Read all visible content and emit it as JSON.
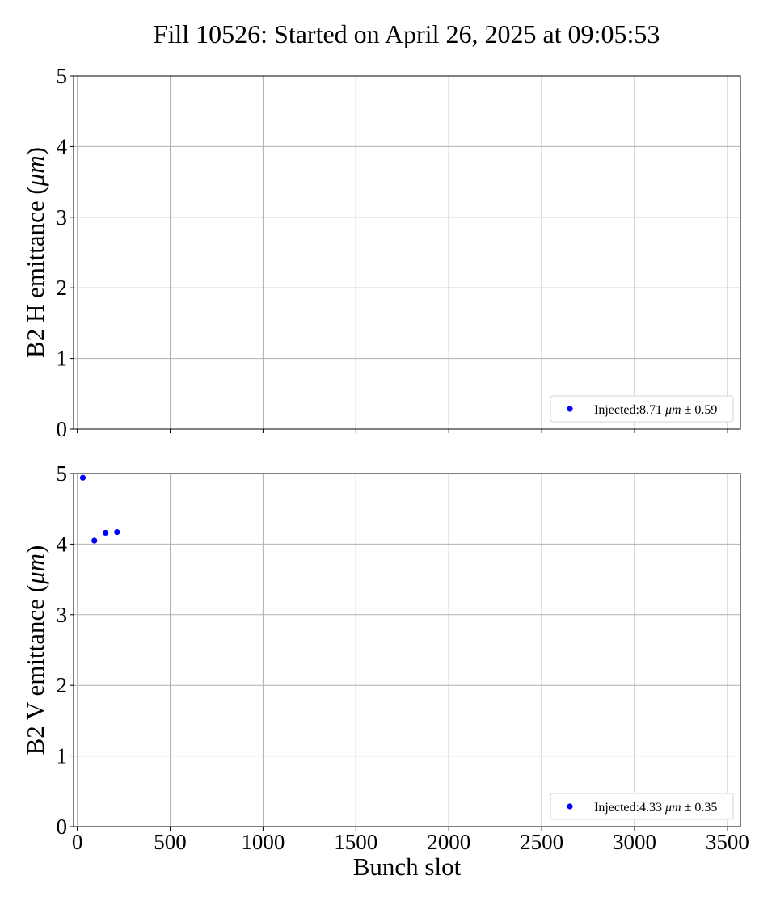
{
  "figure": {
    "title": "Fill 10526: Started on April 26, 2025 at 09:05:53"
  },
  "chart_data": [
    {
      "type": "scatter",
      "ylabel_text": "B2 H emittance (",
      "ylabel_unit": "μm",
      "ylabel_close": ")",
      "xlabel": "",
      "xlim": [
        -20,
        3570
      ],
      "ylim": [
        0,
        5
      ],
      "xticks": [
        0,
        500,
        1000,
        1500,
        2000,
        2500,
        3000,
        3500
      ],
      "yticks": [
        0,
        1,
        2,
        3,
        4,
        5
      ],
      "show_xtick_labels": false,
      "grid": true,
      "legend_placement": "lower-right",
      "series": [
        {
          "legend_prefix": "Injected:8.71 ",
          "legend_unit": "μm",
          "legend_suffix": " ± 0.59",
          "color": "#0000ff",
          "x": [],
          "y": []
        }
      ]
    },
    {
      "type": "scatter",
      "ylabel_text": "B2 V emittance (",
      "ylabel_unit": "μm",
      "ylabel_close": ")",
      "xlabel": "Bunch slot",
      "xlim": [
        -20,
        3570
      ],
      "ylim": [
        0,
        5
      ],
      "xticks": [
        0,
        500,
        1000,
        1500,
        2000,
        2500,
        3000,
        3500
      ],
      "yticks": [
        0,
        1,
        2,
        3,
        4,
        5
      ],
      "show_xtick_labels": true,
      "grid": true,
      "legend_placement": "lower-right",
      "series": [
        {
          "legend_prefix": "Injected:4.33 ",
          "legend_unit": "μm",
          "legend_suffix": " ± 0.35",
          "color": "#0000ff",
          "x": [
            30,
            92,
            152,
            214
          ],
          "y": [
            4.94,
            4.05,
            4.16,
            4.17
          ]
        }
      ]
    }
  ]
}
